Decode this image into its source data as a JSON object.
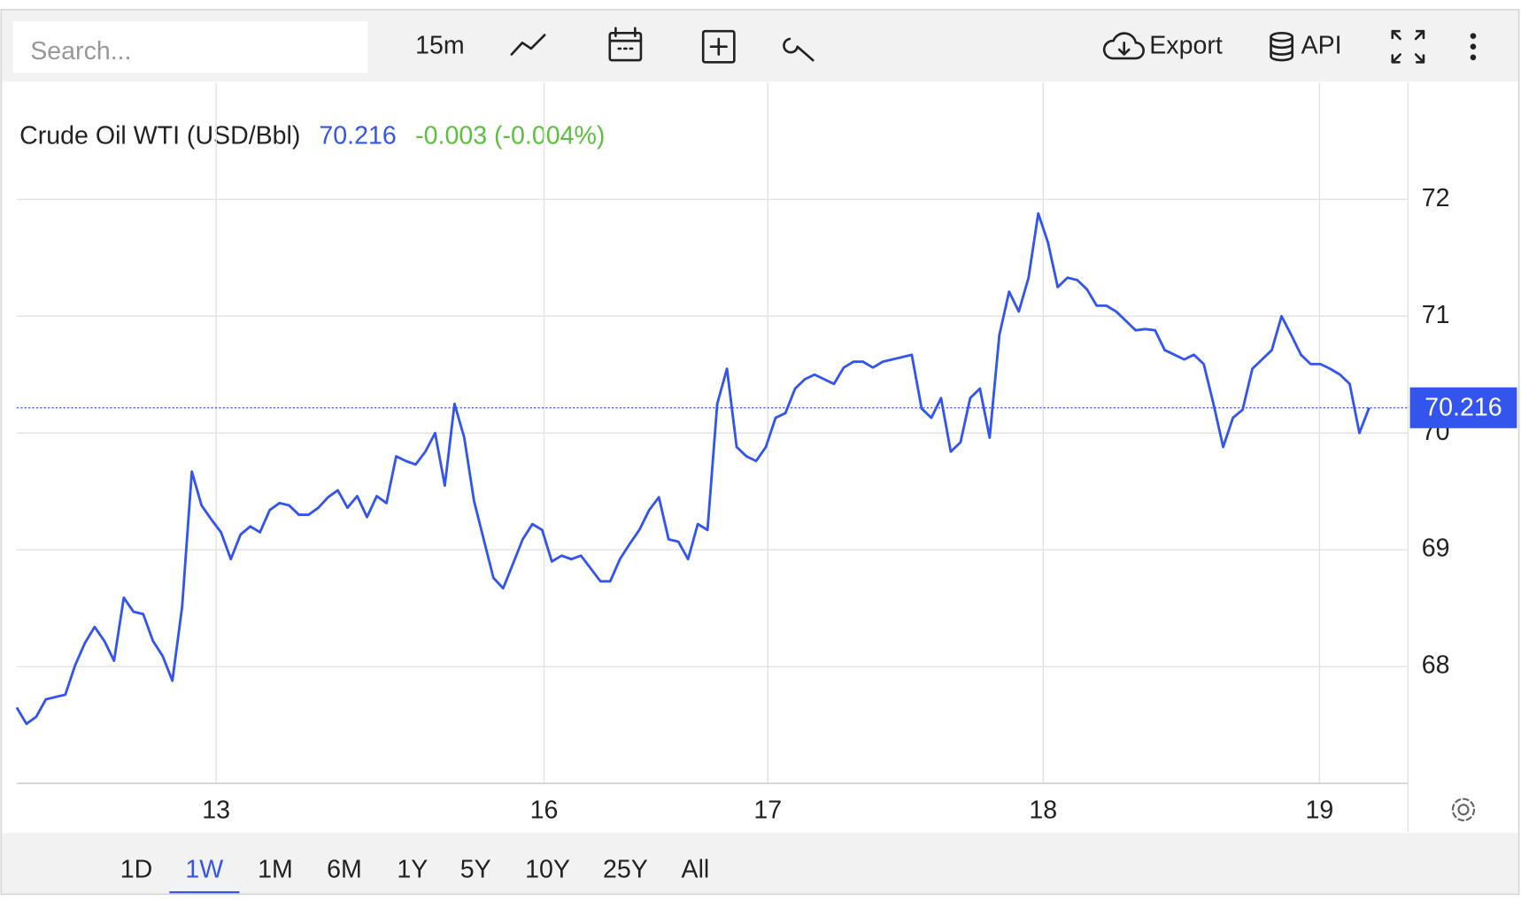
{
  "toolbar": {
    "search_placeholder": "Search...",
    "interval": "15m",
    "export": "Export",
    "api": "API"
  },
  "ranges": {
    "items": [
      "1D",
      "1W",
      "1M",
      "6M",
      "1Y",
      "5Y",
      "10Y",
      "25Y",
      "All"
    ],
    "active": 1
  },
  "chart_data": {
    "type": "line",
    "title": "Crude Oil WTI (USD/Bbl)",
    "change": "-0.003 (-0.004%)",
    "color": "#3355ee",
    "change_color": "#5cbf3e",
    "grid": true,
    "axis_side": "right",
    "values": [
      67.65,
      67.51,
      67.57,
      67.72,
      67.74,
      67.76,
      68.01,
      68.2,
      68.34,
      68.22,
      68.05,
      68.59,
      68.47,
      68.45,
      68.22,
      68.09,
      67.88,
      68.51,
      69.67,
      69.38,
      69.26,
      69.15,
      68.92,
      69.13,
      69.2,
      69.15,
      69.34,
      69.4,
      69.38,
      69.3,
      69.3,
      69.36,
      69.45,
      69.51,
      69.36,
      69.46,
      69.28,
      69.46,
      69.4,
      69.8,
      69.76,
      69.73,
      69.84,
      70.0,
      69.55,
      70.25,
      69.96,
      69.42,
      69.09,
      68.76,
      68.67,
      68.88,
      69.09,
      69.22,
      69.17,
      68.9,
      68.95,
      68.92,
      68.95,
      68.84,
      68.73,
      68.73,
      68.92,
      69.05,
      69.17,
      69.34,
      69.45,
      69.09,
      69.07,
      68.92,
      69.22,
      69.17,
      70.25,
      70.55,
      69.88,
      69.8,
      69.76,
      69.88,
      70.13,
      70.17,
      70.38,
      70.46,
      70.5,
      70.46,
      70.42,
      70.56,
      70.61,
      70.61,
      70.56,
      70.61,
      70.63,
      70.65,
      70.67,
      70.21,
      70.13,
      70.3,
      69.84,
      69.92,
      70.3,
      70.38,
      69.96,
      70.84,
      71.21,
      71.04,
      71.33,
      71.88,
      71.63,
      71.25,
      71.33,
      71.31,
      71.23,
      71.09,
      71.09,
      71.04,
      70.96,
      70.88,
      70.89,
      70.88,
      70.71,
      70.67,
      70.63,
      70.67,
      70.59,
      70.25,
      69.88,
      70.13,
      70.2,
      70.55,
      70.63,
      70.71,
      71.0,
      70.84,
      70.67,
      70.59,
      70.59,
      70.55,
      70.5,
      70.42,
      70.0,
      70.216
    ],
    "xlim": [
      0,
      143
    ],
    "xticks": [
      {
        "value": 20.5,
        "label": "13"
      },
      {
        "value": 54.2,
        "label": "16"
      },
      {
        "value": 77.2,
        "label": "17"
      },
      {
        "value": 105.5,
        "label": "18"
      },
      {
        "value": 133.9,
        "label": "19"
      }
    ],
    "ylim": [
      67,
      73
    ],
    "yticks": [
      68,
      69,
      70,
      71,
      72
    ]
  }
}
